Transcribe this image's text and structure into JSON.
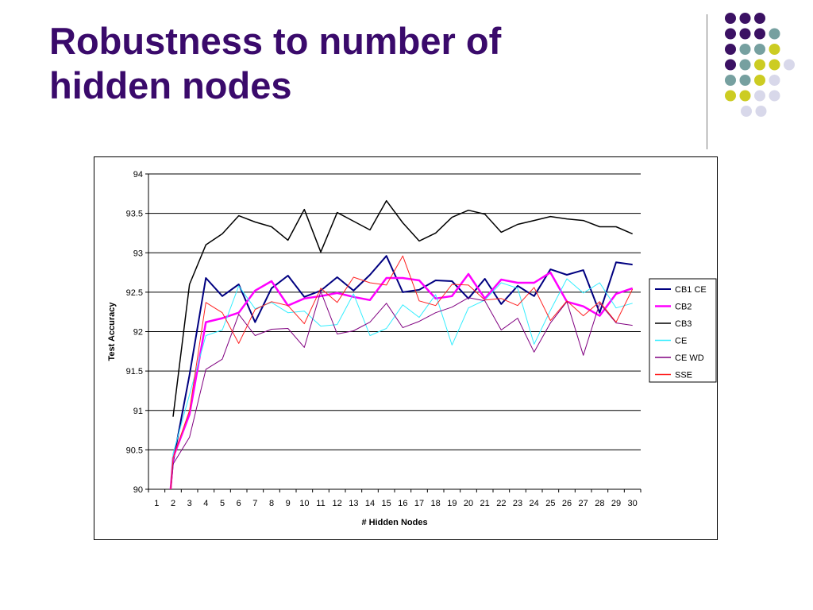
{
  "slide": {
    "title_line1": "Robustness to number of",
    "title_line2": "hidden nodes",
    "title_color": "#3a0a6b"
  },
  "decoration": {
    "dot_colors": {
      "purple": "#3b1163",
      "teal": "#76a0a0",
      "yellow": "#cccc22",
      "lavender": "#d8d8ea"
    },
    "dot_rows": [
      [
        "purple",
        "purple",
        "purple"
      ],
      [
        "purple",
        "purple",
        "purple",
        "teal"
      ],
      [
        "purple",
        "teal",
        "teal",
        "yellow"
      ],
      [
        "purple",
        "teal",
        "yellow",
        "yellow",
        "lavender"
      ],
      [
        "teal",
        "teal",
        "yellow",
        "lavender"
      ],
      [
        "yellow",
        "yellow",
        "lavender",
        "lavender"
      ],
      [
        "lavender",
        "lavender"
      ]
    ]
  },
  "chart_data": {
    "type": "line",
    "title": "",
    "xlabel": "# Hidden Nodes",
    "ylabel": "Test Accuracy",
    "categories": [
      1,
      2,
      3,
      4,
      5,
      6,
      7,
      8,
      9,
      10,
      11,
      12,
      13,
      14,
      15,
      16,
      17,
      18,
      19,
      20,
      21,
      22,
      23,
      24,
      25,
      26,
      27,
      28,
      29,
      30
    ],
    "ylim": [
      90,
      94
    ],
    "yticks": [
      90,
      90.5,
      91,
      91.5,
      92,
      92.5,
      93,
      93.5,
      94
    ],
    "ytick_labels": [
      "90",
      "90.5",
      "91",
      "91.5",
      "92",
      "92.5",
      "93",
      "93.5",
      "94"
    ],
    "grid": true,
    "legend_position": "right",
    "series": [
      {
        "name": "CB1 CE",
        "color": "#000080",
        "width": 2,
        "x": [
          1.85,
          2,
          3,
          4,
          5,
          6,
          7,
          8,
          9,
          10,
          11,
          12,
          13,
          14,
          15,
          16,
          17,
          18,
          19,
          20,
          21,
          22,
          23,
          24,
          25,
          26,
          27,
          28,
          29,
          30
        ],
        "values": [
          90,
          90.35,
          91.45,
          92.68,
          92.45,
          92.6,
          92.12,
          92.55,
          92.71,
          92.44,
          92.52,
          92.69,
          92.52,
          92.72,
          92.96,
          92.5,
          92.53,
          92.65,
          92.64,
          92.42,
          92.67,
          92.35,
          92.58,
          92.45,
          92.79,
          92.72,
          92.78,
          92.24,
          92.88,
          92.85
        ]
      },
      {
        "name": "CB2",
        "color": "#ff00ff",
        "width": 2.5,
        "x": [
          1.85,
          2,
          3,
          4,
          5,
          6,
          7,
          8,
          9,
          10,
          11,
          12,
          13,
          14,
          15,
          16,
          17,
          18,
          19,
          20,
          21,
          22,
          23,
          24,
          25,
          26,
          27,
          28,
          29,
          30
        ],
        "values": [
          90,
          90.4,
          90.95,
          92.12,
          92.17,
          92.24,
          92.52,
          92.64,
          92.33,
          92.42,
          92.45,
          92.49,
          92.44,
          92.4,
          92.68,
          92.68,
          92.65,
          92.42,
          92.45,
          92.73,
          92.42,
          92.66,
          92.62,
          92.62,
          92.75,
          92.38,
          92.32,
          92.2,
          92.48,
          92.55
        ]
      },
      {
        "name": "CB3",
        "color": "#000000",
        "width": 1.5,
        "x": [
          2,
          3,
          4,
          5,
          6,
          7,
          8,
          9,
          10,
          11,
          12,
          13,
          14,
          15,
          16,
          17,
          18,
          19,
          20,
          21,
          22,
          23,
          24,
          25,
          26,
          27,
          28,
          29,
          30
        ],
        "values": [
          90.92,
          92.6,
          93.1,
          93.24,
          93.47,
          93.39,
          93.33,
          93.16,
          93.55,
          93.01,
          93.51,
          93.4,
          93.29,
          93.66,
          93.38,
          93.15,
          93.25,
          93.45,
          93.54,
          93.49,
          93.26,
          93.36,
          93.41,
          93.46,
          93.43,
          93.41,
          93.33,
          93.33,
          93.24
        ]
      },
      {
        "name": "CE",
        "color": "#33eeff",
        "width": 1,
        "x": [
          1.85,
          2,
          3,
          4,
          5,
          6,
          7,
          8,
          9,
          10,
          11,
          12,
          13,
          14,
          15,
          16,
          17,
          18,
          19,
          20,
          21,
          22,
          23,
          24,
          25,
          26,
          27,
          28,
          29,
          30
        ],
        "values": [
          90,
          90.45,
          91.2,
          91.95,
          92.02,
          92.58,
          92.29,
          92.37,
          92.24,
          92.26,
          92.07,
          92.09,
          92.48,
          91.95,
          92.04,
          92.34,
          92.18,
          92.47,
          91.83,
          92.3,
          92.4,
          92.62,
          92.55,
          91.84,
          92.27,
          92.67,
          92.49,
          92.62,
          92.3,
          92.36
        ]
      },
      {
        "name": "CE WD",
        "color": "#800080",
        "width": 1,
        "x": [
          1.85,
          2,
          3,
          4,
          5,
          6,
          7,
          8,
          9,
          10,
          11,
          12,
          13,
          14,
          15,
          16,
          17,
          18,
          19,
          20,
          21,
          22,
          23,
          24,
          25,
          26,
          27,
          28,
          29,
          30
        ],
        "values": [
          90,
          90.32,
          90.66,
          91.52,
          91.65,
          92.22,
          91.95,
          92.03,
          92.04,
          91.8,
          92.51,
          91.97,
          92.01,
          92.12,
          92.36,
          92.05,
          92.13,
          92.24,
          92.31,
          92.43,
          92.39,
          92.02,
          92.17,
          91.74,
          92.11,
          92.38,
          91.7,
          92.36,
          92.11,
          92.08
        ]
      },
      {
        "name": "SSE",
        "color": "#ff2222",
        "width": 1,
        "x": [
          1.85,
          2,
          3,
          4,
          5,
          6,
          7,
          8,
          9,
          10,
          11,
          12,
          13,
          14,
          15,
          16,
          17,
          18,
          19,
          20,
          21,
          22,
          23,
          24,
          25,
          26,
          27,
          28,
          29,
          30
        ],
        "values": [
          90,
          90.4,
          91.0,
          92.37,
          92.24,
          91.85,
          92.28,
          92.38,
          92.33,
          92.1,
          92.55,
          92.37,
          92.69,
          92.62,
          92.59,
          92.96,
          92.39,
          92.33,
          92.6,
          92.59,
          92.4,
          92.42,
          92.33,
          92.56,
          92.14,
          92.39,
          92.2,
          92.38,
          92.12,
          92.54
        ]
      }
    ]
  }
}
